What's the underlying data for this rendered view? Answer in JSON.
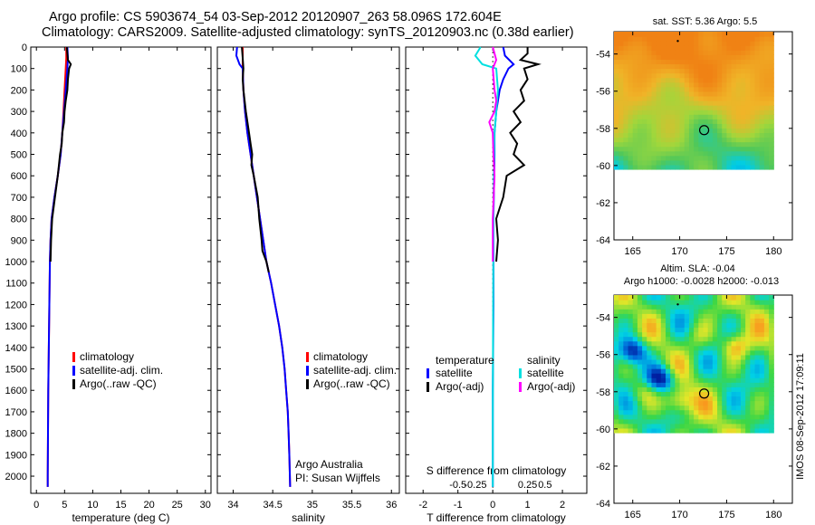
{
  "header": {
    "title_line1": "Argo profile: CS 5903674_54 03-Sep-2012 20120907_263 58.096S 172.604E",
    "title_line2": "Climatology: CARS2009. Satellite-adjusted climatology: synTS_20120903.nc (0.38d earlier)"
  },
  "footer_stamp": "IMOS 08-Sep-2012 17:09:11",
  "colors": {
    "climatology": "#ff0000",
    "satellite": "#0000ff",
    "argo": "#000000",
    "salinity_satellite": "#00e0e0",
    "salinity_argo": "#ff00ff"
  },
  "chart_data": [
    {
      "id": "temperature",
      "type": "line",
      "xlabel": "temperature (deg C)",
      "xlim": [
        -1,
        31
      ],
      "xticks": [
        0,
        5,
        10,
        15,
        20,
        25,
        30
      ],
      "xtick_labels": [
        "0",
        "5",
        "10",
        "15",
        "20",
        "25",
        "30"
      ],
      "ylim": [
        0,
        2080
      ],
      "yticks": [
        0,
        100,
        200,
        300,
        400,
        500,
        600,
        700,
        800,
        900,
        1000,
        1100,
        1200,
        1300,
        1400,
        1500,
        1600,
        1700,
        1800,
        1900,
        2000
      ],
      "ytick_labels": [
        "0",
        "100",
        "200",
        "300",
        "400",
        "500",
        "600",
        "700",
        "800",
        "900",
        "1000",
        "1100",
        "1200",
        "1300",
        "1400",
        "1500",
        "1600",
        "1700",
        "1800",
        "1900",
        "2000"
      ],
      "yreversed": true,
      "legend": [
        "climatology",
        "satellite-adj. clim.",
        "Argo(..raw -QC)"
      ],
      "series": [
        {
          "name": "climatology",
          "color": "#ff0000",
          "depth": [
            0,
            50,
            100,
            200,
            300,
            400,
            500,
            600,
            700,
            800,
            900,
            1000,
            1200,
            1400,
            1600,
            1800,
            2000,
            2050
          ],
          "values": [
            5.3,
            5.3,
            5.2,
            5.0,
            4.8,
            4.6,
            4.3,
            3.8,
            3.2,
            2.7,
            2.5,
            2.4,
            2.3,
            2.2,
            2.1,
            2.05,
            2.0,
            2.0
          ]
        },
        {
          "name": "satellite-adj. clim.",
          "color": "#0000ff",
          "depth": [
            0,
            50,
            100,
            200,
            300,
            400,
            500,
            600,
            700,
            800,
            900,
            1000,
            1200,
            1400,
            1600,
            1800,
            2000,
            2050
          ],
          "values": [
            5.5,
            5.6,
            5.5,
            5.2,
            4.9,
            4.6,
            4.3,
            3.8,
            3.2,
            2.7,
            2.5,
            2.4,
            2.3,
            2.2,
            2.1,
            2.05,
            2.0,
            2.0
          ]
        },
        {
          "name": "Argo(..raw -QC)",
          "color": "#000000",
          "depth": [
            0,
            30,
            60,
            80,
            100,
            150,
            200,
            250,
            300,
            350,
            400,
            450,
            500,
            600,
            700,
            800,
            900,
            1000
          ],
          "values": [
            5.4,
            5.5,
            5.6,
            6.1,
            5.8,
            5.6,
            5.5,
            5.2,
            5.0,
            4.9,
            4.6,
            4.5,
            4.2,
            3.8,
            3.3,
            2.8,
            2.6,
            2.5
          ]
        }
      ]
    },
    {
      "id": "salinity",
      "type": "line",
      "xlabel": "salinity",
      "xlim": [
        33.8,
        36.1
      ],
      "xticks": [
        34,
        34.5,
        35,
        35.5,
        36
      ],
      "xtick_labels": [
        "34",
        "34.5",
        "35",
        "35.5",
        "36"
      ],
      "ylim": [
        0,
        2080
      ],
      "yreversed": true,
      "legend": [
        "climatology",
        "satellite-adj. clim.",
        "Argo(..raw -QC)"
      ],
      "annotations": [
        "Argo Australia",
        "PI: Susan Wijffels"
      ],
      "series": [
        {
          "name": "climatology",
          "color": "#ff0000",
          "depth": [
            0,
            100,
            200,
            300,
            400,
            500,
            600,
            700,
            800,
            900,
            1000,
            1100,
            1200,
            1300,
            1400,
            1500,
            1600,
            1700,
            1800,
            1900,
            2050
          ],
          "values": [
            34.12,
            34.12,
            34.13,
            34.15,
            34.18,
            34.22,
            34.26,
            34.3,
            34.34,
            34.38,
            34.42,
            34.48,
            34.53,
            34.58,
            34.62,
            34.65,
            34.67,
            34.69,
            34.7,
            34.71,
            34.72
          ]
        },
        {
          "name": "satellite-adj. clim.",
          "color": "#0000ff",
          "depth": [
            0,
            40,
            80,
            100,
            200,
            300,
            400,
            500,
            600,
            700,
            800,
            900,
            1000,
            1100,
            1200,
            1300,
            1400,
            1500,
            1600,
            1700,
            1800,
            1900,
            2050
          ],
          "values": [
            34.05,
            34.04,
            34.08,
            34.12,
            34.13,
            34.15,
            34.18,
            34.22,
            34.26,
            34.3,
            34.34,
            34.38,
            34.42,
            34.48,
            34.53,
            34.58,
            34.62,
            34.65,
            34.67,
            34.69,
            34.7,
            34.71,
            34.72
          ]
        },
        {
          "name": "Argo(..raw -QC)",
          "color": "#000000",
          "depth": [
            0,
            50,
            100,
            150,
            200,
            300,
            400,
            450,
            500,
            550,
            600,
            700,
            800,
            900,
            950,
            1000,
            1050
          ],
          "values": [
            34.11,
            34.12,
            34.13,
            34.12,
            34.13,
            34.16,
            34.2,
            34.22,
            34.24,
            34.23,
            34.26,
            34.31,
            34.33,
            34.36,
            34.37,
            34.42,
            34.45
          ]
        }
      ]
    },
    {
      "id": "difference",
      "type": "line",
      "xlabel": "T difference from climatology",
      "xlabel_top": "S difference from climatology",
      "xlim": [
        -2.5,
        2.7
      ],
      "xticks": [
        -2,
        -1,
        0,
        1,
        2
      ],
      "xtick_labels": [
        "-2",
        "-1",
        "0",
        "1",
        "2"
      ],
      "sticks": [
        -1,
        -0.5,
        1,
        1.5
      ],
      "stick_labels": [
        "-0.5",
        "-0.25",
        "0.25",
        "0.5"
      ],
      "ylim": [
        0,
        2080
      ],
      "yreversed": true,
      "legend_left": [
        "temperature",
        "satellite",
        "Argo(-adj)"
      ],
      "legend_right": [
        "salinity",
        "satellite",
        "Argo(-adj)"
      ],
      "series": [
        {
          "name": "satellite",
          "color": "#0000ff",
          "depth": [
            0,
            40,
            80,
            100,
            150,
            200,
            300,
            400,
            500,
            800,
            1200,
            1600,
            2050
          ],
          "values": [
            0.3,
            0.35,
            0.6,
            0.45,
            0.3,
            0.2,
            0.1,
            0.05,
            0.05,
            0.02,
            0.02,
            0.0,
            0.0
          ]
        },
        {
          "name": "Argo(-adj)",
          "color": "#000000",
          "depth": [
            0,
            30,
            60,
            80,
            100,
            150,
            200,
            250,
            300,
            350,
            400,
            450,
            500,
            550,
            600,
            700,
            750,
            800,
            900,
            1000
          ],
          "values": [
            1.0,
            1.0,
            0.8,
            1.3,
            0.9,
            1.0,
            0.8,
            0.9,
            0.6,
            0.8,
            0.5,
            0.7,
            0.6,
            0.9,
            0.4,
            0.3,
            0.2,
            0.1,
            0.15,
            0.1
          ]
        },
        {
          "name": "satellite",
          "color": "#00e0e0",
          "depth": [
            0,
            40,
            80,
            100,
            200,
            300,
            400,
            600,
            900,
            1300,
            1700,
            2050
          ],
          "values": [
            -0.35,
            -0.5,
            -0.3,
            0.1,
            0.15,
            0.1,
            0.05,
            0.03,
            0.02,
            0.01,
            0.0,
            0.0
          ]
        },
        {
          "name": "Argo(-adj)",
          "color": "#ff00ff",
          "depth": [
            0,
            60,
            100,
            200,
            250,
            300,
            350,
            400,
            500,
            600,
            800,
            1000
          ],
          "values": [
            0.0,
            0.1,
            0.0,
            0.05,
            0.1,
            0.05,
            -0.1,
            0.0,
            0.02,
            0.05,
            0.0,
            0.0
          ]
        }
      ]
    }
  ],
  "maps": [
    {
      "id": "sst-map",
      "title": "sat. SST: 5.36 Argo: 5.5",
      "xlim": [
        163,
        182
      ],
      "xticks": [
        165,
        170,
        175,
        180
      ],
      "xtick_labels": [
        "165",
        "170",
        "175",
        "180"
      ],
      "ylim": [
        -64,
        -52.8
      ],
      "yticks": [
        -54,
        -56,
        -58,
        -60,
        -62,
        -64
      ],
      "ytick_labels": [
        "-54",
        "-56",
        "-58",
        "-60",
        "-62",
        "-64"
      ],
      "data_extent_lon": [
        163,
        180
      ],
      "data_extent_lat": [
        -60.2,
        -52.8
      ],
      "argo_position": [
        172.604,
        -58.096
      ]
    },
    {
      "id": "sla-map",
      "title": "Altim. SLA: -0.04",
      "title2": "Argo h1000: -0.0028 h2000: -0.013",
      "xlim": [
        163,
        182
      ],
      "xticks": [
        165,
        170,
        175,
        180
      ],
      "xtick_labels": [
        "165",
        "170",
        "175",
        "180"
      ],
      "ylim": [
        -64,
        -52.8
      ],
      "yticks": [
        -54,
        -56,
        -58,
        -60,
        -62,
        -64
      ],
      "ytick_labels": [
        "-54",
        "-56",
        "-58",
        "-60",
        "-62",
        "-64"
      ],
      "data_extent_lon": [
        163,
        180
      ],
      "data_extent_lat": [
        -60.2,
        -52.8
      ],
      "argo_position": [
        172.604,
        -58.096
      ]
    }
  ]
}
